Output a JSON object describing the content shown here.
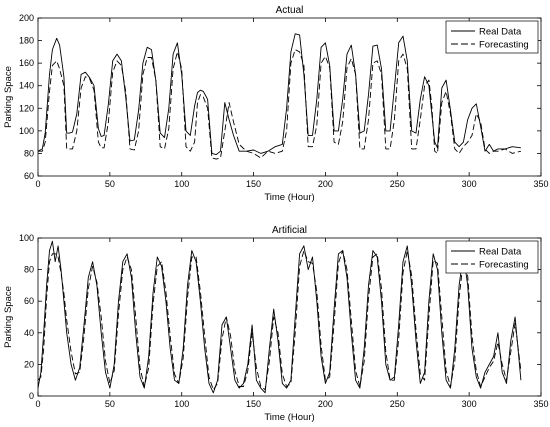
{
  "chart_data": [
    {
      "type": "line",
      "title": "Actual",
      "xlabel": "Time (Hour)",
      "ylabel": "Parking Space",
      "xlim": [
        0,
        350
      ],
      "ylim": [
        60,
        200
      ],
      "xticks": [
        0,
        50,
        100,
        150,
        200,
        250,
        300,
        350
      ],
      "yticks": [
        60,
        80,
        100,
        120,
        140,
        160,
        180,
        200
      ],
      "grid": false,
      "legend_position": "top-right",
      "series": [
        {
          "name": "Real Data",
          "style": "solid",
          "color": "#000000",
          "x": [
            0,
            3,
            5,
            8,
            10,
            13,
            15,
            18,
            20,
            22,
            24,
            27,
            30,
            33,
            36,
            39,
            42,
            44,
            46,
            49,
            52,
            55,
            58,
            61,
            64,
            67,
            70,
            73,
            76,
            79,
            82,
            85,
            88,
            91,
            94,
            97,
            100,
            103,
            106,
            109,
            111,
            113,
            115,
            118,
            121,
            124,
            127,
            130,
            133,
            136,
            140,
            145,
            150,
            155,
            160,
            165,
            170,
            173,
            176,
            179,
            182,
            185,
            188,
            191,
            194,
            197,
            200,
            203,
            206,
            209,
            212,
            215,
            218,
            221,
            224,
            227,
            230,
            233,
            236,
            239,
            242,
            245,
            248,
            251,
            254,
            257,
            260,
            263,
            266,
            269,
            272,
            274,
            276,
            278,
            281,
            284,
            287,
            290,
            293,
            296,
            299,
            302,
            305,
            308,
            311,
            314,
            317,
            320,
            325,
            330,
            336
          ],
          "y": [
            82,
            84,
            98,
            150,
            172,
            182,
            176,
            148,
            98,
            98,
            99,
            115,
            150,
            152,
            147,
            140,
            102,
            95,
            96,
            124,
            162,
            168,
            162,
            130,
            91,
            92,
            118,
            160,
            174,
            172,
            145,
            98,
            94,
            120,
            168,
            178,
            150,
            100,
            96,
            122,
            134,
            136,
            135,
            128,
            80,
            79,
            82,
            125,
            110,
            96,
            82,
            82,
            83,
            80,
            82,
            86,
            88,
            120,
            170,
            186,
            185,
            150,
            96,
            96,
            128,
            174,
            178,
            158,
            100,
            100,
            128,
            168,
            176,
            150,
            98,
            100,
            132,
            175,
            176,
            155,
            100,
            100,
            138,
            178,
            184,
            162,
            100,
            98,
            128,
            148,
            140,
            115,
            90,
            85,
            138,
            145,
            118,
            90,
            86,
            90,
            110,
            120,
            124,
            104,
            82,
            88,
            82,
            84,
            84,
            86,
            85
          ]
        },
        {
          "name": "Forecasting",
          "style": "dashed",
          "color": "#000000",
          "x": [
            0,
            3,
            5,
            8,
            10,
            13,
            15,
            18,
            20,
            22,
            24,
            27,
            30,
            33,
            36,
            39,
            42,
            44,
            46,
            49,
            52,
            55,
            58,
            61,
            64,
            67,
            70,
            73,
            76,
            79,
            82,
            85,
            88,
            91,
            94,
            97,
            100,
            103,
            106,
            109,
            111,
            113,
            115,
            118,
            121,
            124,
            127,
            130,
            133,
            136,
            140,
            145,
            150,
            155,
            160,
            165,
            170,
            173,
            176,
            179,
            182,
            185,
            188,
            191,
            194,
            197,
            200,
            203,
            206,
            209,
            212,
            215,
            218,
            221,
            224,
            227,
            230,
            233,
            236,
            239,
            242,
            245,
            248,
            251,
            254,
            257,
            260,
            263,
            266,
            269,
            272,
            274,
            276,
            278,
            281,
            284,
            287,
            290,
            293,
            296,
            299,
            302,
            305,
            308,
            311,
            314,
            317,
            320,
            325,
            330,
            336
          ],
          "y": [
            82,
            82,
            90,
            135,
            158,
            162,
            155,
            140,
            84,
            84,
            84,
            100,
            138,
            148,
            146,
            136,
            90,
            85,
            85,
            108,
            152,
            162,
            158,
            135,
            84,
            83,
            100,
            150,
            165,
            165,
            145,
            86,
            84,
            102,
            155,
            170,
            155,
            86,
            82,
            90,
            125,
            132,
            130,
            120,
            76,
            75,
            76,
            100,
            125,
            108,
            88,
            82,
            80,
            76,
            82,
            80,
            82,
            100,
            160,
            172,
            170,
            158,
            86,
            86,
            105,
            160,
            166,
            156,
            90,
            88,
            108,
            156,
            164,
            150,
            84,
            84,
            110,
            160,
            162,
            150,
            84,
            84,
            110,
            162,
            168,
            155,
            84,
            84,
            110,
            140,
            145,
            122,
            82,
            80,
            125,
            135,
            115,
            84,
            80,
            86,
            90,
            96,
            115,
            108,
            84,
            80,
            82,
            82,
            84,
            80,
            82
          ]
        }
      ]
    },
    {
      "type": "line",
      "title": "Artificial",
      "xlabel": "Time (Hour)",
      "ylabel": "Parking Space",
      "xlim": [
        0,
        350
      ],
      "ylim": [
        0,
        100
      ],
      "xticks": [
        0,
        50,
        100,
        150,
        200,
        250,
        300,
        350
      ],
      "yticks": [
        0,
        20,
        40,
        60,
        80,
        100
      ],
      "grid": false,
      "legend_position": "top-right",
      "series": [
        {
          "name": "Real Data",
          "style": "solid",
          "color": "#000000",
          "x": [
            0,
            2,
            4,
            6,
            8,
            10,
            12,
            14,
            16,
            18,
            20,
            23,
            26,
            29,
            32,
            35,
            38,
            41,
            44,
            47,
            50,
            53,
            56,
            59,
            62,
            65,
            68,
            71,
            74,
            77,
            80,
            83,
            86,
            89,
            92,
            95,
            98,
            101,
            104,
            107,
            110,
            113,
            116,
            119,
            122,
            125,
            128,
            131,
            134,
            137,
            140,
            143,
            146,
            149,
            152,
            155,
            158,
            161,
            164,
            167,
            170,
            173,
            176,
            179,
            182,
            185,
            188,
            191,
            194,
            197,
            200,
            203,
            206,
            209,
            212,
            215,
            218,
            221,
            224,
            227,
            230,
            233,
            236,
            239,
            242,
            245,
            248,
            251,
            254,
            257,
            260,
            263,
            266,
            269,
            272,
            275,
            278,
            281,
            284,
            287,
            290,
            293,
            296,
            299,
            302,
            305,
            308,
            311,
            314,
            317,
            320,
            323,
            326,
            329,
            332,
            336
          ],
          "y": [
            5,
            15,
            40,
            70,
            92,
            98,
            85,
            95,
            80,
            60,
            40,
            20,
            10,
            18,
            45,
            75,
            85,
            70,
            40,
            15,
            5,
            20,
            60,
            85,
            90,
            75,
            40,
            12,
            5,
            25,
            65,
            88,
            82,
            60,
            30,
            10,
            8,
            30,
            70,
            92,
            85,
            60,
            30,
            8,
            2,
            10,
            45,
            50,
            30,
            10,
            5,
            8,
            20,
            45,
            10,
            5,
            2,
            30,
            55,
            35,
            8,
            5,
            10,
            50,
            90,
            95,
            80,
            88,
            60,
            25,
            8,
            15,
            55,
            90,
            92,
            75,
            40,
            10,
            5,
            30,
            70,
            92,
            88,
            60,
            20,
            10,
            12,
            45,
            85,
            95,
            70,
            35,
            8,
            15,
            60,
            90,
            80,
            40,
            10,
            5,
            30,
            70,
            90,
            70,
            30,
            12,
            5,
            15,
            20,
            25,
            40,
            15,
            8,
            35,
            50,
            10
          ]
        },
        {
          "name": "Forecasting",
          "style": "dashed",
          "color": "#000000",
          "x": [
            0,
            2,
            4,
            6,
            8,
            10,
            12,
            14,
            16,
            18,
            20,
            23,
            26,
            29,
            32,
            35,
            38,
            41,
            44,
            47,
            50,
            53,
            56,
            59,
            62,
            65,
            68,
            71,
            74,
            77,
            80,
            83,
            86,
            89,
            92,
            95,
            98,
            101,
            104,
            107,
            110,
            113,
            116,
            119,
            122,
            125,
            128,
            131,
            134,
            137,
            140,
            143,
            146,
            149,
            152,
            155,
            158,
            161,
            164,
            167,
            170,
            173,
            176,
            179,
            182,
            185,
            188,
            191,
            194,
            197,
            200,
            203,
            206,
            209,
            212,
            215,
            218,
            221,
            224,
            227,
            230,
            233,
            236,
            239,
            242,
            245,
            248,
            251,
            254,
            257,
            260,
            263,
            266,
            269,
            272,
            275,
            278,
            281,
            284,
            287,
            290,
            293,
            296,
            299,
            302,
            305,
            308,
            311,
            314,
            317,
            320,
            323,
            326,
            329,
            332,
            336
          ],
          "y": [
            10,
            12,
            30,
            62,
            85,
            90,
            90,
            88,
            78,
            65,
            48,
            28,
            14,
            15,
            38,
            68,
            82,
            72,
            50,
            22,
            8,
            16,
            52,
            80,
            88,
            80,
            50,
            18,
            6,
            18,
            58,
            82,
            85,
            66,
            38,
            14,
            8,
            24,
            62,
            88,
            88,
            66,
            38,
            12,
            4,
            8,
            36,
            50,
            38,
            16,
            6,
            6,
            16,
            40,
            18,
            6,
            4,
            22,
            50,
            40,
            14,
            6,
            8,
            40,
            82,
            92,
            85,
            84,
            66,
            32,
            10,
            12,
            46,
            84,
            92,
            80,
            48,
            16,
            6,
            22,
            62,
            88,
            90,
            68,
            28,
            10,
            10,
            36,
            78,
            92,
            76,
            42,
            14,
            10,
            50,
            86,
            84,
            50,
            16,
            6,
            22,
            62,
            86,
            76,
            38,
            16,
            6,
            12,
            18,
            22,
            34,
            20,
            10,
            28,
            46,
            16
          ]
        }
      ]
    }
  ]
}
